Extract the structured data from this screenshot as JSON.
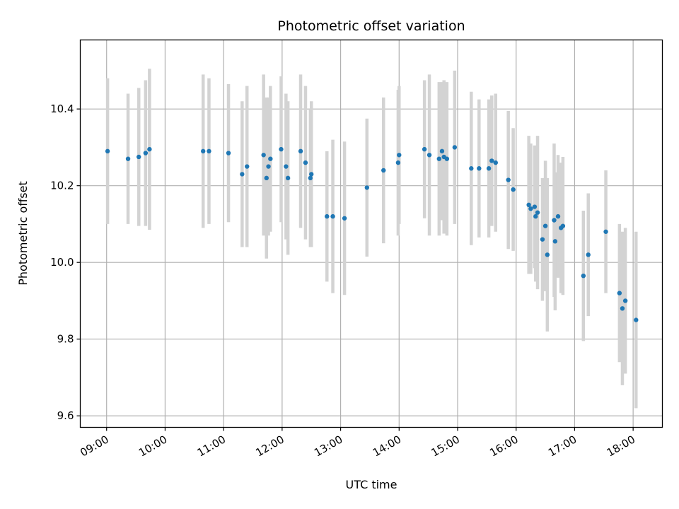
{
  "chart_data": {
    "type": "scatter",
    "title": "Photometric offset variation",
    "xlabel": "UTC time",
    "ylabel": "Photometric offset",
    "xlim": [
      "08:33",
      "18:30"
    ],
    "ylim": [
      9.57,
      10.58
    ],
    "grid": true,
    "x_ticks": [
      "09:00",
      "10:00",
      "11:00",
      "12:00",
      "13:00",
      "14:00",
      "15:00",
      "16:00",
      "17:00",
      "18:00"
    ],
    "y_ticks": [
      "9.6",
      "9.8",
      "10.0",
      "10.2",
      "10.4"
    ],
    "colors": {
      "point": "#1f77b4",
      "errorbar": "#d3d3d3",
      "grid": "#b0b0b0"
    },
    "series": [
      {
        "x": [
          "09:01",
          "09:22",
          "09:33",
          "09:40",
          "09:44",
          "10:39",
          "10:45",
          "11:05",
          "11:19",
          "11:24",
          "11:41",
          "11:44",
          "11:46",
          "11:48",
          "11:59",
          "12:04",
          "12:06",
          "12:19",
          "12:24",
          "12:29",
          "12:30",
          "12:46",
          "12:52",
          "13:04",
          "13:27",
          "13:44",
          "13:59",
          "14:00",
          "14:26",
          "14:31",
          "14:41",
          "14:44",
          "14:46",
          "14:49",
          "14:57",
          "15:14",
          "15:22",
          "15:32",
          "15:35",
          "15:39",
          "15:52",
          "15:57",
          "16:13",
          "16:15",
          "16:19",
          "16:20",
          "16:22",
          "16:27",
          "16:30",
          "16:32",
          "16:39",
          "16:40",
          "16:43",
          "16:46",
          "16:48",
          "17:09",
          "17:14",
          "17:32",
          "17:46",
          "17:49",
          "17:52",
          "18:03"
        ],
        "y": [
          10.29,
          10.27,
          10.275,
          10.285,
          10.295,
          10.29,
          10.29,
          10.285,
          10.23,
          10.25,
          10.28,
          10.22,
          10.25,
          10.27,
          10.295,
          10.25,
          10.22,
          10.29,
          10.26,
          10.22,
          10.23,
          10.12,
          10.12,
          10.115,
          10.195,
          10.24,
          10.26,
          10.28,
          10.295,
          10.28,
          10.27,
          10.29,
          10.275,
          10.27,
          10.3,
          10.245,
          10.245,
          10.245,
          10.265,
          10.26,
          10.215,
          10.19,
          10.15,
          10.14,
          10.145,
          10.12,
          10.13,
          10.06,
          10.095,
          10.02,
          10.11,
          10.055,
          10.12,
          10.09,
          10.095,
          9.965,
          10.02,
          10.08,
          9.92,
          9.88,
          9.9,
          9.85
        ],
        "err": [
          0.19,
          0.17,
          0.18,
          0.19,
          0.21,
          0.2,
          0.19,
          0.18,
          0.19,
          0.21,
          0.21,
          0.21,
          0.18,
          0.19,
          0.19,
          0.19,
          0.2,
          0.2,
          0.2,
          0.18,
          0.19,
          0.17,
          0.2,
          0.2,
          0.18,
          0.19,
          0.19,
          0.18,
          0.18,
          0.21,
          0.2,
          0.18,
          0.2,
          0.2,
          0.2,
          0.2,
          0.18,
          0.18,
          0.17,
          0.18,
          0.18,
          0.16,
          0.18,
          0.17,
          0.16,
          0.17,
          0.2,
          0.16,
          0.17,
          0.2,
          0.2,
          0.18,
          0.16,
          0.17,
          0.18,
          0.17,
          0.16,
          0.16,
          0.18,
          0.2,
          0.19,
          0.23
        ]
      }
    ]
  }
}
